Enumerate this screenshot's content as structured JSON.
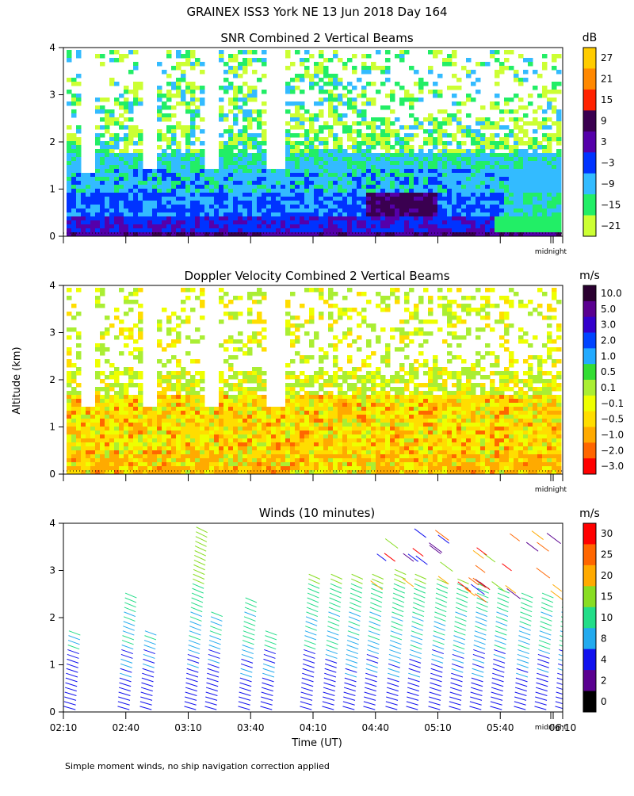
{
  "figure": {
    "title": "GRAINEX ISS3 York NE  13 Jun 2018 Day 164",
    "ylabel": "Altitude (km)",
    "xlabel": "Time (UT)",
    "footnote": "Simple moment winds, no ship navigation correction applied",
    "midnight_label": "midnight"
  },
  "chart_data": [
    {
      "type": "heatmap",
      "title": "SNR Combined 2 Vertical Beams",
      "unit": "dB",
      "ylim": [
        0,
        4
      ],
      "yticks": [
        0,
        1,
        2,
        3,
        4
      ],
      "colorbar_labels": [
        "27",
        "21",
        "15",
        "9",
        "3",
        "−3",
        "−9",
        "−15",
        "−21"
      ],
      "colorbar_colors": [
        "#ffcc00",
        "#ff8800",
        "#ff2200",
        "#3a0050",
        "#5500aa",
        "#0033ff",
        "#33bbff",
        "#22ee66",
        "#ccff33"
      ]
    },
    {
      "type": "heatmap",
      "title": "Doppler Velocity Combined 2 Vertical Beams",
      "unit": "m/s",
      "ylim": [
        0,
        4
      ],
      "yticks": [
        0,
        1,
        2,
        3,
        4
      ],
      "colorbar_labels": [
        "10.0",
        "5.0",
        "3.0",
        "2.0",
        "1.0",
        "0.5",
        "0.1",
        "−0.1",
        "−0.5",
        "−1.0",
        "−2.0",
        "−3.0"
      ],
      "colorbar_colors": [
        "#2a0030",
        "#5a0090",
        "#3300cc",
        "#0044ff",
        "#22aaff",
        "#33dd33",
        "#aaee33",
        "#eeff00",
        "#ffdd00",
        "#ffaa00",
        "#ff6600",
        "#ff0000"
      ]
    },
    {
      "type": "scatter",
      "title": "Winds (10 minutes)",
      "unit": "m/s",
      "ylim": [
        0,
        4
      ],
      "yticks": [
        0,
        1,
        2,
        3,
        4
      ],
      "x_tick_labels": [
        "02:10",
        "02:40",
        "03:10",
        "03:40",
        "04:10",
        "04:40",
        "05:10",
        "05:40",
        "06:10"
      ],
      "colorbar_labels": [
        "30",
        "25",
        "20",
        "15",
        "10",
        "8",
        "4",
        "2",
        "0"
      ],
      "colorbar_colors": [
        "#ff0000",
        "#ff6600",
        "#ffaa00",
        "#88dd22",
        "#22dd88",
        "#22aaee",
        "#1111ee",
        "#5a0090",
        "#000000"
      ]
    }
  ]
}
